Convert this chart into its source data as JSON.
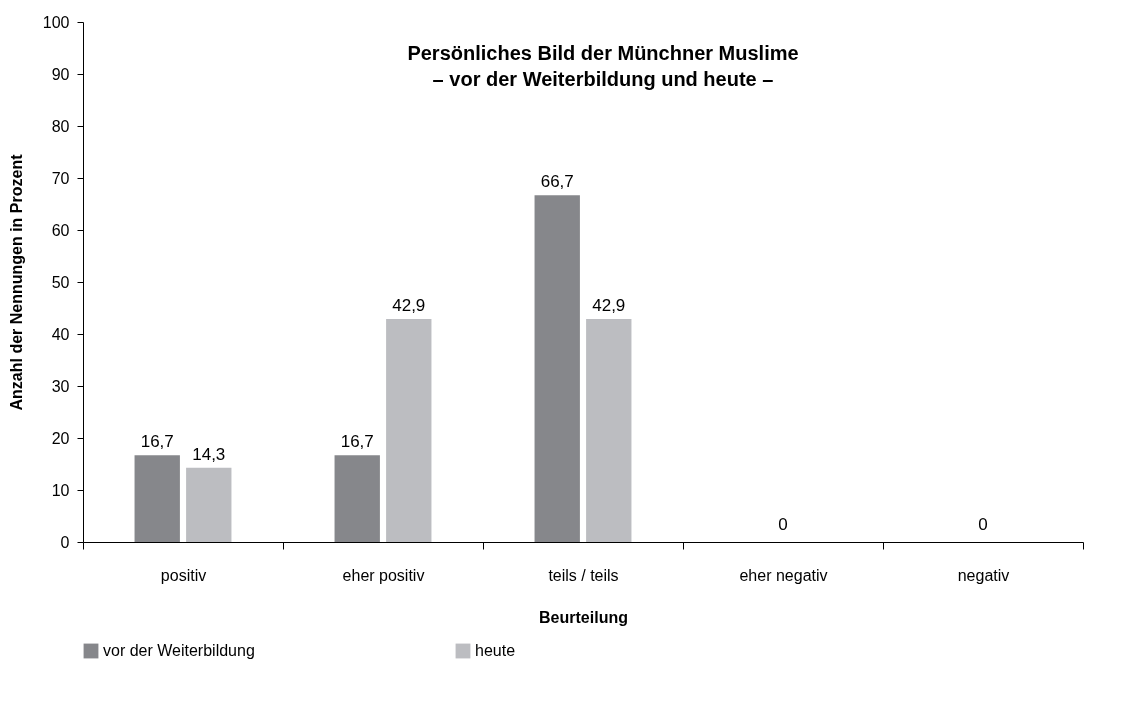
{
  "chart_data": {
    "type": "bar",
    "title": "Persönliches Bild der Münchner Muslime\n– vor der Weiterbildung und heute –",
    "xlabel": "Beurteilung",
    "ylabel": "Anzahl der Nennungen in Prozent",
    "categories": [
      "positiv",
      "eher positiv",
      "teils / teils",
      "eher negativ",
      "negativ"
    ],
    "series": [
      {
        "name": "vor der Weiterbildung",
        "color": "#86878b",
        "values": [
          16.7,
          16.7,
          66.7,
          0,
          0
        ],
        "value_labels": [
          "16,7",
          "16,7",
          "66,7",
          null,
          null
        ]
      },
      {
        "name": "heute",
        "color": "#bcbdc1",
        "values": [
          14.3,
          42.9,
          42.9,
          0,
          0
        ],
        "value_labels": [
          "14,3",
          "42,9",
          "42,9",
          null,
          null
        ]
      }
    ],
    "annotations": [
      {
        "text": "0",
        "x": "eher negativ",
        "y": 0
      },
      {
        "text": "0",
        "x": "negativ",
        "y": 0
      }
    ],
    "ylim": [
      0,
      100
    ],
    "yticks": [
      0,
      10,
      20,
      30,
      40,
      50,
      60,
      70,
      80,
      90,
      100
    ],
    "grid": false,
    "legend": "bottom"
  }
}
